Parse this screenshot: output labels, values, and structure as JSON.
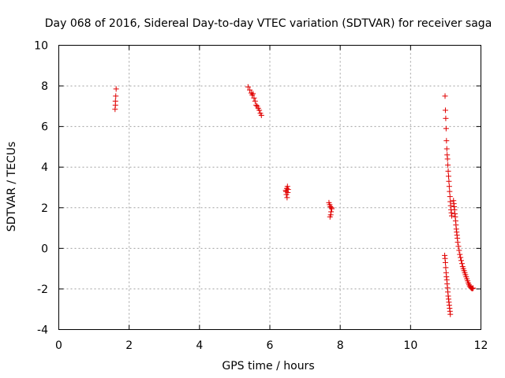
{
  "chart_data": {
    "type": "scatter",
    "title": "Day 068 of 2016, Sidereal Day-to-day VTEC variation (SDTVAR) for receiver saga",
    "xlabel": "GPS time / hours",
    "ylabel": "SDTVAR / TECUs",
    "xlim": [
      0,
      12
    ],
    "ylim": [
      -4,
      10
    ],
    "xticks": [
      0,
      2,
      4,
      6,
      8,
      10,
      12
    ],
    "yticks": [
      -4,
      -2,
      0,
      2,
      4,
      6,
      8,
      10
    ],
    "grid": true,
    "marker": "+",
    "marker_color": "#e00000",
    "series": [
      {
        "name": "SDTVAR",
        "points": [
          [
            1.6,
            6.85
          ],
          [
            1.61,
            7.05
          ],
          [
            1.61,
            7.25
          ],
          [
            1.62,
            7.5
          ],
          [
            1.63,
            7.85
          ],
          [
            5.38,
            7.95
          ],
          [
            5.43,
            7.8
          ],
          [
            5.47,
            7.65
          ],
          [
            5.5,
            7.55
          ],
          [
            5.52,
            7.62
          ],
          [
            5.55,
            7.4
          ],
          [
            5.58,
            7.25
          ],
          [
            5.61,
            7.05
          ],
          [
            5.64,
            7.0
          ],
          [
            5.67,
            6.9
          ],
          [
            5.7,
            6.8
          ],
          [
            5.73,
            6.65
          ],
          [
            5.76,
            6.55
          ],
          [
            6.45,
            2.85
          ],
          [
            6.46,
            2.8
          ],
          [
            6.47,
            2.65
          ],
          [
            6.48,
            2.95
          ],
          [
            6.49,
            2.5
          ],
          [
            6.5,
            3.05
          ],
          [
            6.51,
            2.75
          ],
          [
            6.52,
            2.9
          ],
          [
            7.68,
            2.25
          ],
          [
            7.7,
            2.15
          ],
          [
            7.71,
            1.55
          ],
          [
            7.72,
            2.05
          ],
          [
            7.73,
            1.65
          ],
          [
            7.74,
            1.8
          ],
          [
            7.75,
            2.0
          ],
          [
            7.76,
            1.95
          ],
          [
            10.98,
            7.5
          ],
          [
            10.99,
            6.8
          ],
          [
            11.0,
            6.4
          ],
          [
            11.01,
            5.9
          ],
          [
            11.02,
            5.3
          ],
          [
            11.03,
            4.9
          ],
          [
            11.04,
            4.6
          ],
          [
            11.05,
            4.4
          ],
          [
            11.06,
            4.1
          ],
          [
            11.07,
            3.8
          ],
          [
            11.08,
            3.55
          ],
          [
            11.09,
            3.3
          ],
          [
            11.1,
            3.05
          ],
          [
            11.11,
            2.8
          ],
          [
            11.12,
            2.55
          ],
          [
            11.13,
            2.3
          ],
          [
            11.14,
            2.1
          ],
          [
            11.15,
            1.9
          ],
          [
            11.16,
            1.75
          ],
          [
            11.17,
            1.6
          ],
          [
            10.97,
            -0.35
          ],
          [
            10.98,
            -0.5
          ],
          [
            10.99,
            -0.7
          ],
          [
            11.0,
            -0.95
          ],
          [
            11.01,
            -1.2
          ],
          [
            11.02,
            -1.4
          ],
          [
            11.03,
            -1.55
          ],
          [
            11.04,
            -1.75
          ],
          [
            11.05,
            -1.95
          ],
          [
            11.06,
            -2.15
          ],
          [
            11.07,
            -2.35
          ],
          [
            11.08,
            -2.5
          ],
          [
            11.09,
            -2.65
          ],
          [
            11.1,
            -2.8
          ],
          [
            11.11,
            -2.95
          ],
          [
            11.12,
            -3.1
          ],
          [
            11.13,
            -3.25
          ],
          [
            11.22,
            2.35
          ],
          [
            11.23,
            2.2
          ],
          [
            11.24,
            2.05
          ],
          [
            11.25,
            1.9
          ],
          [
            11.26,
            1.7
          ],
          [
            11.27,
            1.55
          ],
          [
            11.28,
            1.35
          ],
          [
            11.29,
            1.15
          ],
          [
            11.3,
            0.95
          ],
          [
            11.31,
            0.8
          ],
          [
            11.32,
            0.65
          ],
          [
            11.33,
            0.5
          ],
          [
            11.34,
            0.3
          ],
          [
            11.36,
            0.1
          ],
          [
            11.38,
            -0.1
          ],
          [
            11.4,
            -0.3
          ],
          [
            11.42,
            -0.45
          ],
          [
            11.44,
            -0.6
          ],
          [
            11.46,
            -0.75
          ],
          [
            11.48,
            -0.9
          ],
          [
            11.5,
            -1.0
          ],
          [
            11.52,
            -1.1
          ],
          [
            11.54,
            -1.2
          ],
          [
            11.56,
            -1.3
          ],
          [
            11.58,
            -1.4
          ],
          [
            11.6,
            -1.5
          ],
          [
            11.62,
            -1.6
          ],
          [
            11.64,
            -1.7
          ],
          [
            11.66,
            -1.78
          ],
          [
            11.68,
            -1.85
          ],
          [
            11.7,
            -1.9
          ],
          [
            11.72,
            -1.95
          ],
          [
            11.74,
            -1.97
          ],
          [
            11.76,
            -1.98
          ],
          [
            11.78,
            -1.96
          ]
        ]
      }
    ]
  }
}
